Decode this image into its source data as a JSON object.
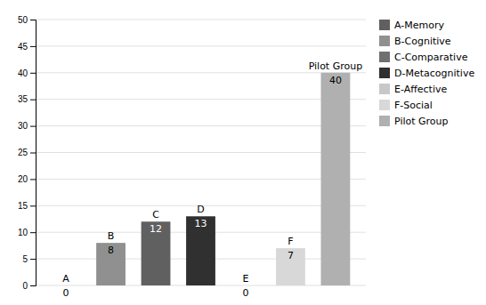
{
  "chart_data": {
    "type": "bar",
    "categories": [
      "A",
      "B",
      "C",
      "D",
      "E",
      "F",
      "Pilot Group"
    ],
    "values": [
      0,
      8,
      12,
      13,
      0,
      7,
      40
    ],
    "colors": [
      "#A0A0A0",
      "#909090",
      "#606060",
      "#303030",
      "#C8C8C8",
      "#D8D8D8",
      "#B0B0B0"
    ],
    "data_labels": true,
    "tick_labels": "y",
    "ylim": [
      0,
      50
    ],
    "yticks": [
      0,
      5,
      10,
      15,
      20,
      25,
      30,
      35,
      40,
      45,
      50
    ],
    "grid": true,
    "legend": "right",
    "legend_labels": [
      "A-Memory",
      "B-Cognitive",
      "C-Comparative",
      "D-Metacognitive",
      "E-Affective",
      "F-Social",
      "Pilot Group"
    ],
    "legend_colors": [
      "#606060",
      "#909090",
      "#707070",
      "#303030",
      "#C8C8C8",
      "#D8D8D8",
      "#B0B0B0"
    ]
  }
}
